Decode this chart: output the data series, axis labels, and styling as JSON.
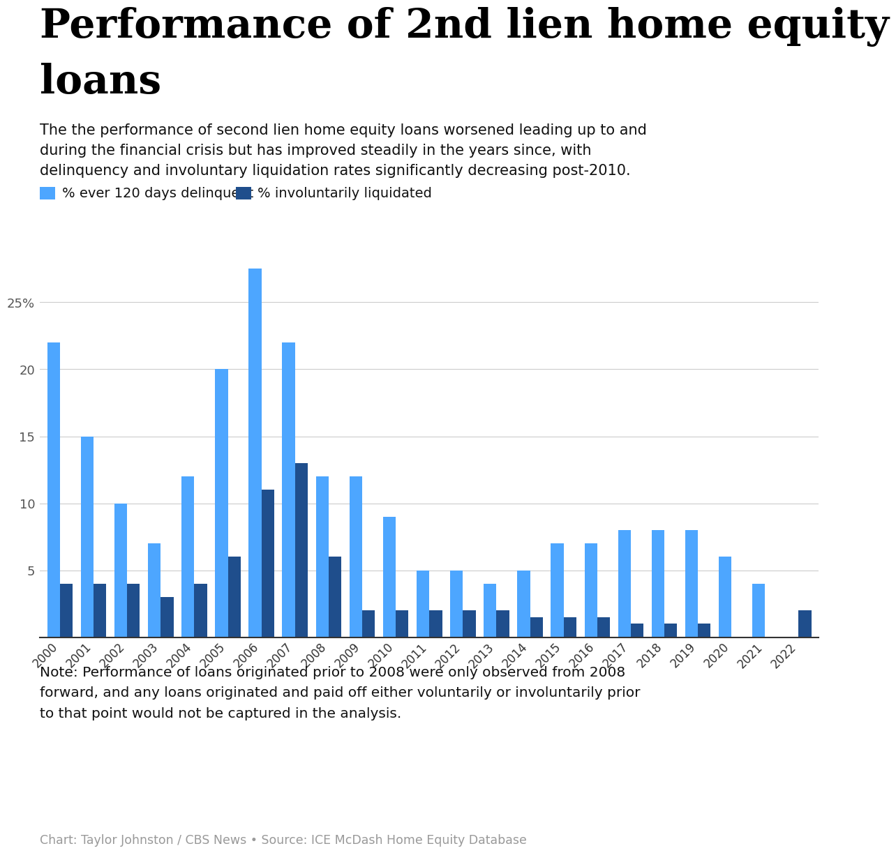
{
  "title_line1": "Performance of 2nd lien home equity",
  "title_line2": "loans",
  "subtitle": "The the performance of second lien home equity loans worsened leading up to and\nduring the financial crisis but has improved steadily in the years since, with\ndelinquency and involuntary liquidation rates significantly decreasing post-2010.",
  "legend": [
    "% ever 120 days delinquent",
    "% involuntarily liquidated"
  ],
  "legend_colors": [
    "#4da6ff",
    "#1f4e8c"
  ],
  "note": "Note: Performance of loans originated prior to 2008 were only observed from 2008\nforward, and any loans originated and paid off either voluntarily or involuntarily prior\nto that point would not be captured in the analysis.",
  "source": "Chart: Taylor Johnston / CBS News • Source: ICE McDash Home Equity Database",
  "years": [
    2000,
    2001,
    2002,
    2003,
    2004,
    2005,
    2006,
    2007,
    2008,
    2009,
    2010,
    2011,
    2012,
    2013,
    2014,
    2015,
    2016,
    2017,
    2018,
    2019,
    2020,
    2021,
    2022
  ],
  "delinquent": [
    22,
    15,
    10,
    7,
    12,
    20,
    27.5,
    22,
    12,
    12,
    9,
    5,
    5,
    4,
    5,
    7,
    7,
    8,
    8,
    8,
    6,
    4,
    0
  ],
  "liquidated": [
    4,
    4,
    4,
    3,
    4,
    6,
    11,
    13,
    6,
    2,
    2,
    2,
    2,
    2,
    1.5,
    1.5,
    1.5,
    1,
    1,
    1,
    0,
    0,
    2
  ],
  "color_delinquent": "#4da6ff",
  "color_liquidated": "#1f4e8c",
  "ylim": [
    0,
    30
  ],
  "background_color": "#ffffff",
  "grid_color": "#cccccc",
  "bar_width": 0.38
}
